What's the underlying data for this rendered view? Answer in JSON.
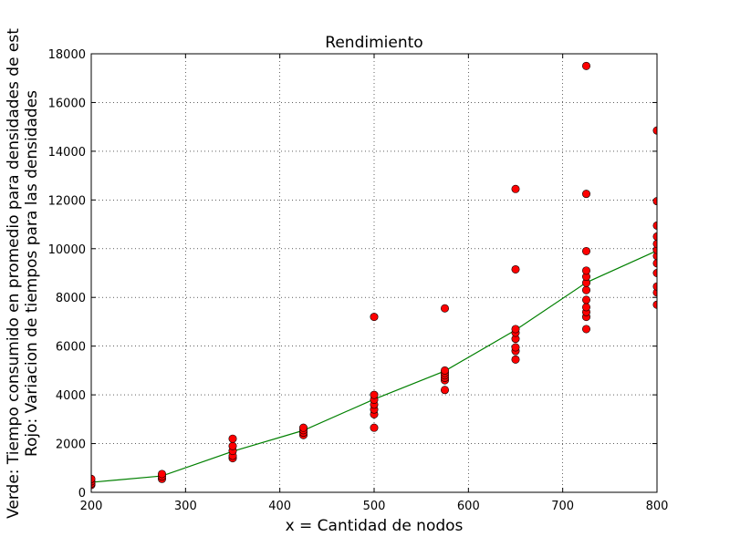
{
  "chart_data": {
    "type": "scatter",
    "title": "Rendimiento",
    "xlabel": "x = Cantidad de nodos",
    "ylabel": [
      "Verde: Tiempo consumido en promedio para densidades de est",
      "Rojo: Variacion de tiempos para las densidades"
    ],
    "xlim": [
      200,
      800
    ],
    "ylim": [
      0,
      18000
    ],
    "xticks": [
      200,
      300,
      400,
      500,
      600,
      700,
      800
    ],
    "yticks": [
      0,
      2000,
      4000,
      6000,
      8000,
      10000,
      12000,
      14000,
      16000,
      18000
    ],
    "grid": true,
    "series": [
      {
        "type": "line",
        "color": "#008000",
        "x": [
          200,
          275,
          350,
          425,
          500,
          575,
          650,
          725,
          800
        ],
        "values": [
          410,
          670,
          1680,
          2540,
          3820,
          4980,
          6660,
          8610,
          9920
        ]
      },
      {
        "type": "scatter",
        "color": "#ff0000",
        "x": [
          200,
          200,
          200,
          200,
          275,
          275,
          275,
          350,
          350,
          350,
          350,
          350,
          425,
          425,
          425,
          425,
          500,
          500,
          500,
          500,
          500,
          500,
          500,
          575,
          575,
          575,
          575,
          575,
          575,
          575,
          650,
          650,
          650,
          650,
          650,
          650,
          650,
          650,
          725,
          725,
          725,
          725,
          725,
          725,
          725,
          725,
          725,
          725,
          725,
          725,
          800,
          800,
          800,
          800,
          800,
          800,
          800,
          800,
          800,
          800,
          800,
          800
        ],
        "values": [
          300,
          350,
          450,
          550,
          550,
          650,
          750,
          1400,
          1500,
          1700,
          1900,
          2200,
          2350,
          2450,
          2550,
          2650,
          2650,
          3200,
          3400,
          3600,
          3800,
          4000,
          7200,
          4200,
          4600,
          4700,
          4800,
          4900,
          5000,
          7550,
          5450,
          5800,
          5950,
          6300,
          6550,
          6700,
          9150,
          12450,
          6700,
          7200,
          7400,
          7600,
          7900,
          8300,
          8600,
          8850,
          9100,
          9900,
          12250,
          17500,
          7700,
          8200,
          8450,
          9000,
          9400,
          9700,
          9950,
          10200,
          10500,
          10950,
          11950,
          14850
        ]
      }
    ]
  }
}
